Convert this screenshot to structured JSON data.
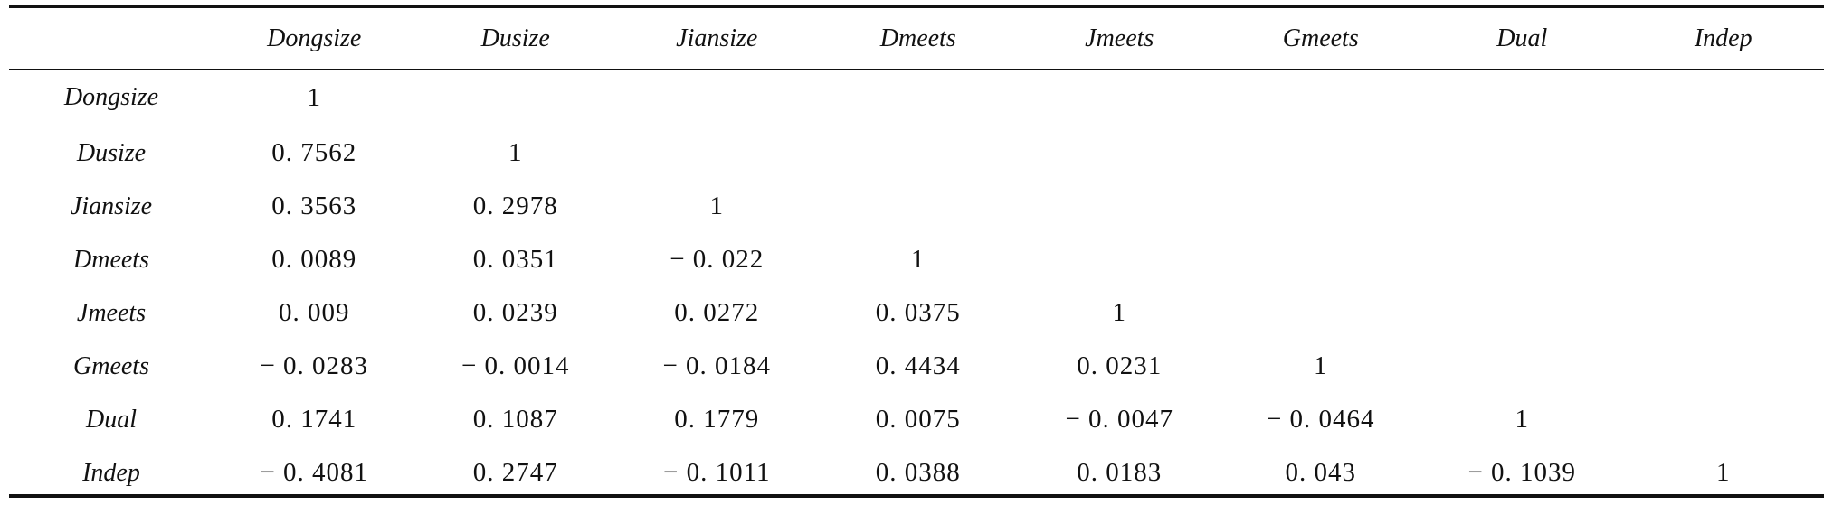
{
  "columns": [
    "",
    "Dongsize",
    "Dusize",
    "Jiansize",
    "Dmeets",
    "Jmeets",
    "Gmeets",
    "Dual",
    "Indep"
  ],
  "rows": [
    {
      "label": "Dongsize",
      "cells": [
        "1",
        "",
        "",
        "",
        "",
        "",
        "",
        ""
      ]
    },
    {
      "label": "Dusize",
      "cells": [
        "0. 7562",
        "1",
        "",
        "",
        "",
        "",
        "",
        ""
      ]
    },
    {
      "label": "Jiansize",
      "cells": [
        "0. 3563",
        "0. 2978",
        "1",
        "",
        "",
        "",
        "",
        ""
      ]
    },
    {
      "label": "Dmeets",
      "cells": [
        "0. 0089",
        "0. 0351",
        "− 0. 022",
        "1",
        "",
        "",
        "",
        ""
      ]
    },
    {
      "label": "Jmeets",
      "cells": [
        "0. 009",
        "0. 0239",
        "0. 0272",
        "0. 0375",
        "1",
        "",
        "",
        ""
      ]
    },
    {
      "label": "Gmeets",
      "cells": [
        "− 0. 0283",
        "− 0. 0014",
        "− 0. 0184",
        "0. 4434",
        "0. 0231",
        "1",
        "",
        ""
      ]
    },
    {
      "label": "Dual",
      "cells": [
        "0. 1741",
        "0. 1087",
        "0. 1779",
        "0. 0075",
        "− 0. 0047",
        "− 0. 0464",
        "1",
        ""
      ]
    },
    {
      "label": "Indep",
      "cells": [
        "− 0. 4081",
        "0. 2747",
        "− 0. 1011",
        "0. 0388",
        "0. 0183",
        "0. 043",
        "− 0. 1039",
        "1"
      ]
    }
  ]
}
